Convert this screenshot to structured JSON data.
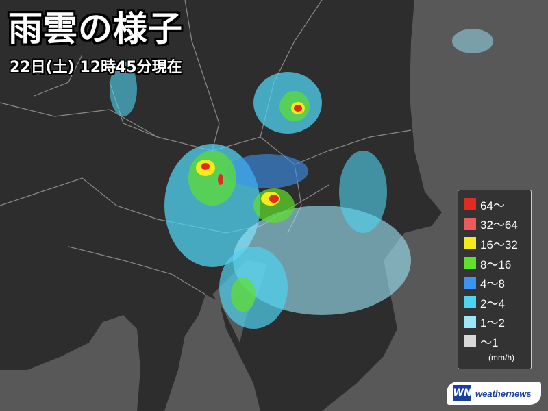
{
  "header": {
    "title": "雨雲の様子",
    "subtitle": "22日(土) 12時45分現在"
  },
  "colors": {
    "land": "#2d2d2d",
    "sea": "#585858",
    "boundary": "#8a8a8a"
  },
  "legend": {
    "items": [
      {
        "label": "64～",
        "color": "#e02b20"
      },
      {
        "label": "32～64",
        "color": "#ec5b5b"
      },
      {
        "label": "16～32",
        "color": "#f5ea1c"
      },
      {
        "label": "8～16",
        "color": "#5fe02b"
      },
      {
        "label": "4～8",
        "color": "#3a95f0"
      },
      {
        "label": "2～4",
        "color": "#4fd3f0"
      },
      {
        "label": "1～2",
        "color": "#9de6fa"
      },
      {
        "label": "～1",
        "color": "#d8d8d8"
      }
    ],
    "unit": "(mm/h)"
  },
  "logo": {
    "mark": "WN",
    "text": "weathernews"
  }
}
